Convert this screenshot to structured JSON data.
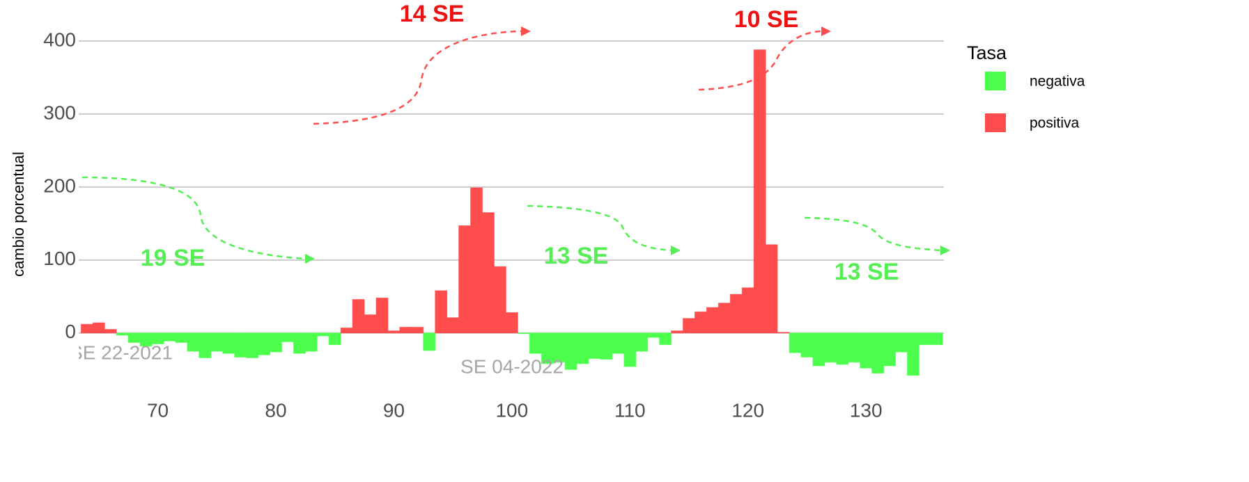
{
  "chart_data": {
    "type": "bar",
    "y_label": "cambio porcentual",
    "legend_title": "Tasa",
    "x": [
      64,
      65,
      66,
      67,
      68,
      69,
      70,
      71,
      72,
      73,
      74,
      75,
      76,
      77,
      78,
      79,
      80,
      81,
      82,
      83,
      84,
      85,
      86,
      87,
      88,
      89,
      90,
      91,
      92,
      93,
      94,
      95,
      96,
      97,
      98,
      99,
      100,
      101,
      102,
      103,
      104,
      105,
      106,
      107,
      108,
      109,
      110,
      111,
      112,
      113,
      114,
      115,
      116,
      117,
      118,
      119,
      120,
      121,
      122,
      123,
      124,
      125,
      126,
      127,
      128,
      129,
      130,
      131,
      132,
      133,
      134,
      135,
      136
    ],
    "series": [
      {
        "name": "negativa",
        "color": "#4dff4d",
        "values": [
          null,
          null,
          null,
          -3,
          -13,
          -18,
          -15,
          -11,
          -13,
          -25,
          -34,
          -25,
          -28,
          -33,
          -34,
          -30,
          -26,
          -12,
          -28,
          -25,
          -4,
          -16,
          null,
          null,
          null,
          null,
          null,
          null,
          null,
          -24,
          null,
          null,
          null,
          null,
          null,
          null,
          null,
          -1,
          -28,
          -42,
          -40,
          -50,
          -42,
          -35,
          -36,
          -28,
          -46,
          -25,
          -6,
          -16,
          null,
          null,
          null,
          null,
          null,
          null,
          null,
          null,
          null,
          null,
          -27,
          -33,
          -45,
          -40,
          -43,
          -40,
          -48,
          -55,
          -45,
          -26,
          -58,
          -16,
          -16
        ]
      },
      {
        "name": "positiva",
        "color": "#ff4d4d",
        "values": [
          12,
          14,
          5,
          null,
          null,
          null,
          null,
          null,
          null,
          null,
          null,
          null,
          null,
          null,
          null,
          null,
          null,
          null,
          null,
          null,
          null,
          null,
          7,
          46,
          25,
          48,
          3,
          8,
          8,
          null,
          58,
          21,
          147,
          199,
          165,
          91,
          28,
          null,
          null,
          null,
          null,
          null,
          null,
          null,
          null,
          null,
          null,
          null,
          null,
          null,
          3,
          20,
          29,
          35,
          41,
          53,
          62,
          388,
          121,
          1,
          null,
          null,
          null,
          null,
          null,
          null,
          null,
          null,
          null,
          null,
          null,
          null,
          null
        ]
      }
    ],
    "annotations": [
      {
        "text": "14 SE",
        "color": "#ee1111"
      },
      {
        "text": "10 SE",
        "color": "#ee1111"
      },
      {
        "text": "19 SE",
        "color": "#55ee55"
      },
      {
        "text": "13 SE",
        "color": "#55ee55"
      },
      {
        "text": "13 SE",
        "color": "#55ee55"
      },
      {
        "text": "SE 22-2021",
        "color": "#a6a6a6"
      },
      {
        "text": "SE 04-2022",
        "color": "#a6a6a6"
      }
    ],
    "xlim": [
      63.3,
      136.6
    ],
    "xticks": [
      70,
      80,
      90,
      100,
      110,
      120,
      130
    ],
    "ylim": [
      -65,
      430
    ],
    "yticks": [
      0,
      100,
      200,
      300,
      400
    ],
    "grid": true
  }
}
